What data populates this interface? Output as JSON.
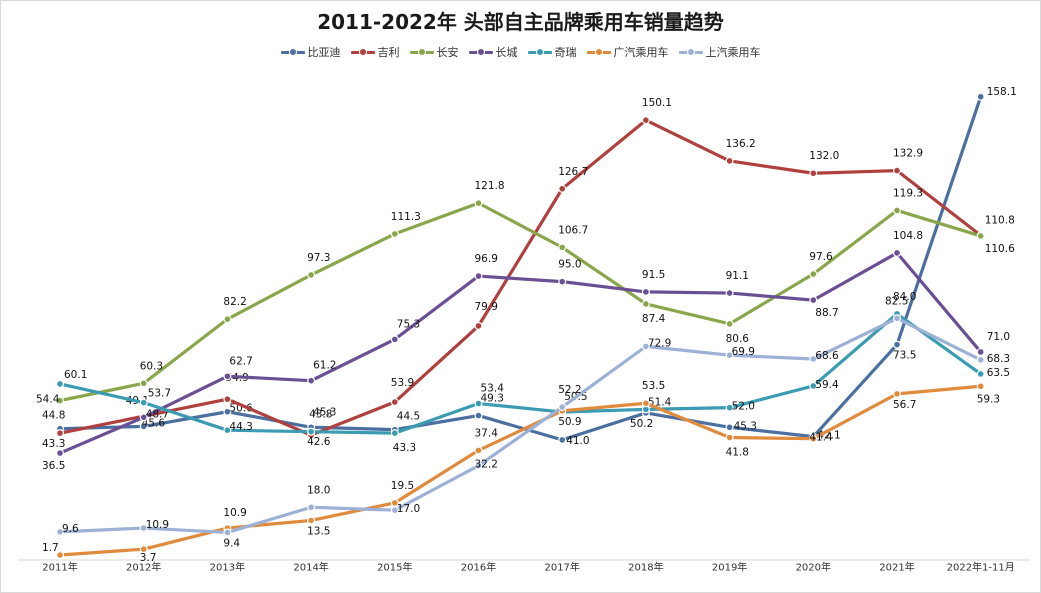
{
  "chart_data": {
    "type": "line",
    "title": "2011-2022年 头部自主品牌乘用车销量趋势",
    "xlabel": "",
    "ylabel": "",
    "categories": [
      "2011年",
      "2012年",
      "2013年",
      "2014年",
      "2015年",
      "2016年",
      "2017年",
      "2018年",
      "2019年",
      "2020年",
      "2021年",
      "2022年1-11月"
    ],
    "ylim": [
      0,
      165
    ],
    "grid": false,
    "legend": "top-center",
    "series": [
      {
        "name": "比亚迪",
        "color": "#4a6fa0",
        "values": [
          44.8,
          45.6,
          50.6,
          45.3,
          44.5,
          49.3,
          41.0,
          50.2,
          45.3,
          42.1,
          73.5,
          158.1
        ]
      },
      {
        "name": "吉利",
        "color": "#b0403e",
        "values": [
          43.3,
          49.1,
          54.9,
          42.6,
          53.9,
          79.9,
          126.7,
          150.1,
          136.2,
          132.0,
          132.9,
          110.8
        ]
      },
      {
        "name": "长安",
        "color": "#89a64a",
        "values": [
          54.4,
          60.3,
          82.2,
          97.3,
          111.3,
          121.8,
          106.7,
          87.4,
          80.6,
          97.6,
          119.3,
          110.6
        ]
      },
      {
        "name": "长城",
        "color": "#6b4f94",
        "values": [
          36.5,
          48.7,
          62.7,
          61.2,
          75.3,
          96.9,
          95.0,
          91.5,
          91.1,
          88.7,
          104.8,
          71.0
        ]
      },
      {
        "name": "奇瑞",
        "color": "#3b9bb2",
        "values": [
          60.1,
          53.7,
          44.3,
          43.8,
          43.3,
          53.4,
          50.5,
          51.4,
          52.0,
          59.4,
          84.0,
          63.5
        ]
      },
      {
        "name": "广汽乘用车",
        "color": "#e08a3c",
        "values": [
          1.7,
          3.7,
          10.9,
          13.5,
          19.5,
          37.4,
          50.9,
          53.5,
          41.8,
          41.4,
          56.7,
          59.3
        ]
      },
      {
        "name": "上汽乘用车",
        "color": "#9db1d6",
        "values": [
          9.6,
          10.9,
          9.4,
          18.0,
          17.0,
          32.2,
          52.2,
          72.9,
          69.9,
          68.6,
          82.5,
          68.3
        ]
      }
    ]
  }
}
